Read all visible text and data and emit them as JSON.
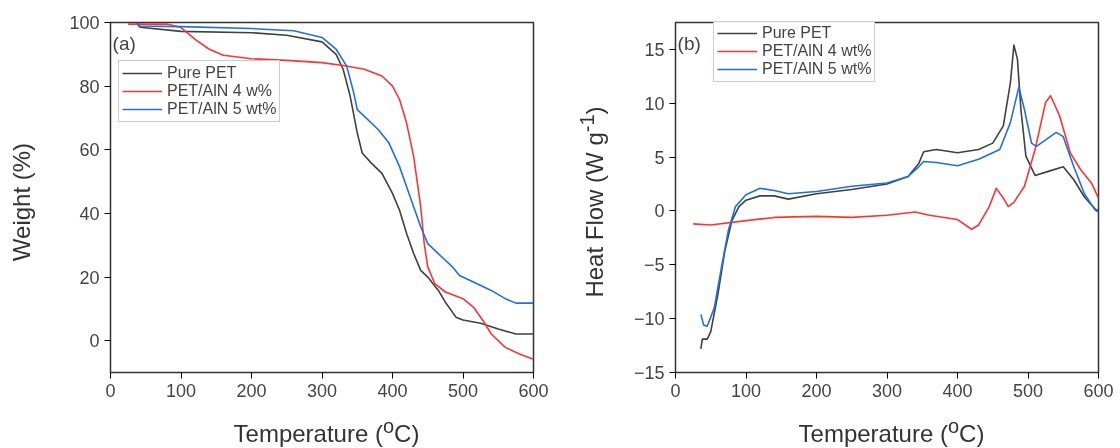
{
  "chart_data": [
    {
      "type": "line",
      "xlabel": "Temperature ($^{o}$C)",
      "ylabel": "Weight (%)",
      "annotations": [
        "(a)"
      ],
      "xlim": [
        0,
        600
      ],
      "ylim": [
        -10,
        100
      ],
      "xticks": [
        0,
        100,
        200,
        300,
        400,
        500,
        600
      ],
      "yticks": [
        0,
        20,
        40,
        60,
        80,
        100
      ],
      "grid": false,
      "legend": "top left",
      "line_style": "solid",
      "series": [
        {
          "name": "Pure PET",
          "color": "#404040",
          "x": [
            37,
            42,
            100,
            200,
            250,
            300,
            320,
            330,
            340,
            350,
            357,
            370,
            385,
            400,
            410,
            420,
            430,
            440,
            450,
            465,
            475,
            490,
            500,
            525,
            550,
            575,
            600
          ],
          "values": [
            100,
            98.5,
            97.2,
            96.8,
            96,
            93.9,
            90,
            85.3,
            76.8,
            65.3,
            59,
            55.8,
            52.6,
            46.3,
            41,
            33.7,
            27.4,
            22.1,
            20,
            15.8,
            12.1,
            7.4,
            6.5,
            5.5,
            3.7,
            2.1,
            2.1
          ]
        },
        {
          "name": "PET/AlN 4 w%",
          "color": "#ff3333",
          "x": [
            25,
            80,
            100,
            120,
            140,
            160,
            200,
            250,
            300,
            330,
            360,
            385,
            400,
            410,
            420,
            430,
            440,
            445,
            450,
            460,
            475,
            500,
            515,
            530,
            540,
            560,
            580,
            600
          ],
          "values": [
            99.5,
            99.5,
            98.4,
            94.7,
            91.6,
            89.7,
            88.6,
            88.1,
            87.4,
            86.5,
            85.3,
            83.2,
            80,
            75.8,
            68.4,
            57.9,
            42.1,
            30.5,
            23.2,
            17.9,
            15.3,
            13.2,
            10.5,
            5.8,
            2.1,
            -2.1,
            -4.2,
            -5.8
          ]
        },
        {
          "name": "PET/AlN 5 wt%",
          "color": "#1f6fe5",
          "x": [
            37,
            40,
            100,
            200,
            260,
            300,
            320,
            335,
            345,
            350,
            365,
            380,
            395,
            410,
            420,
            430,
            440,
            450,
            470,
            485,
            495,
            520,
            540,
            560,
            575,
            600
          ],
          "values": [
            100,
            98.9,
            98.7,
            98.1,
            97.4,
            95.3,
            91.6,
            86.3,
            77.9,
            72.6,
            69.5,
            66.3,
            62.1,
            54.7,
            48.4,
            42.1,
            35.8,
            30.5,
            26.3,
            23.2,
            20.5,
            17.9,
            15.8,
            13.2,
            11.8,
            11.8
          ]
        }
      ]
    },
    {
      "type": "line",
      "xlabel": "Temperature ($^{o}$C)",
      "ylabel": "Heat Flow (W g$^{-1}$)",
      "annotations": [
        "(b)"
      ],
      "xlim": [
        0,
        600
      ],
      "ylim": [
        -15,
        17.5
      ],
      "xticks": [
        0,
        100,
        200,
        300,
        400,
        500,
        600
      ],
      "yticks": [
        -15,
        -10,
        -5,
        0,
        5,
        10,
        15
      ],
      "grid": false,
      "legend": "top left",
      "line_style": "solid",
      "series": [
        {
          "name": "Pure PET",
          "color": "#404040",
          "x": [
            36,
            38,
            45,
            50,
            60,
            70,
            80,
            90,
            100,
            120,
            140,
            160,
            200,
            250,
            300,
            330,
            345,
            352,
            370,
            400,
            430,
            450,
            465,
            475,
            480,
            485,
            490,
            497,
            510,
            530,
            550,
            565,
            580,
            595,
            600
          ],
          "values": [
            -12.8,
            -11.9,
            -11.9,
            -11.2,
            -7.8,
            -3.7,
            -0.9,
            0.4,
            1.0,
            1.4,
            1.4,
            1.1,
            1.6,
            2.0,
            2.5,
            3.2,
            4.4,
            5.5,
            5.7,
            5.4,
            5.7,
            6.3,
            7.9,
            11.9,
            15.4,
            14.1,
            9.4,
            5.1,
            3.3,
            3.7,
            4.1,
            2.9,
            1.3,
            0.2,
            0
          ]
        },
        {
          "name": "PET/AlN 4 wt%",
          "color": "#ff3333",
          "x": [
            25,
            50,
            100,
            140,
            200,
            250,
            300,
            340,
            360,
            400,
            420,
            430,
            445,
            455,
            465,
            472,
            480,
            495,
            510,
            525,
            532,
            545,
            560,
            575,
            590,
            600
          ],
          "values": [
            -1.2,
            -1.3,
            -0.9,
            -0.6,
            -0.5,
            -0.6,
            -0.4,
            -0.1,
            -0.4,
            -0.8,
            -1.7,
            -1.3,
            0.4,
            2.1,
            1.2,
            0.4,
            0.8,
            2.3,
            5.7,
            10.1,
            10.7,
            8.8,
            5.4,
            3.8,
            2.6,
            1.2
          ]
        },
        {
          "name": "PET/AlN 5 wt%",
          "color": "#1f6fe5",
          "x": [
            36,
            40,
            45,
            55,
            65,
            75,
            85,
            100,
            120,
            140,
            160,
            200,
            250,
            300,
            330,
            345,
            352,
            370,
            400,
            430,
            460,
            475,
            487,
            495,
            505,
            512,
            525,
            540,
            550,
            565,
            580,
            595,
            600
          ],
          "values": [
            -9.6,
            -10.6,
            -10.7,
            -9,
            -5.3,
            -1.8,
            0.4,
            1.5,
            2.1,
            1.9,
            1.6,
            1.8,
            2.3,
            2.6,
            3.2,
            4.1,
            4.6,
            4.5,
            4.2,
            4.8,
            5.7,
            8.2,
            11.5,
            9.4,
            6.3,
            6.0,
            6.6,
            7.3,
            6.9,
            4.1,
            1.6,
            0.1,
            -0.1
          ]
        }
      ]
    }
  ]
}
